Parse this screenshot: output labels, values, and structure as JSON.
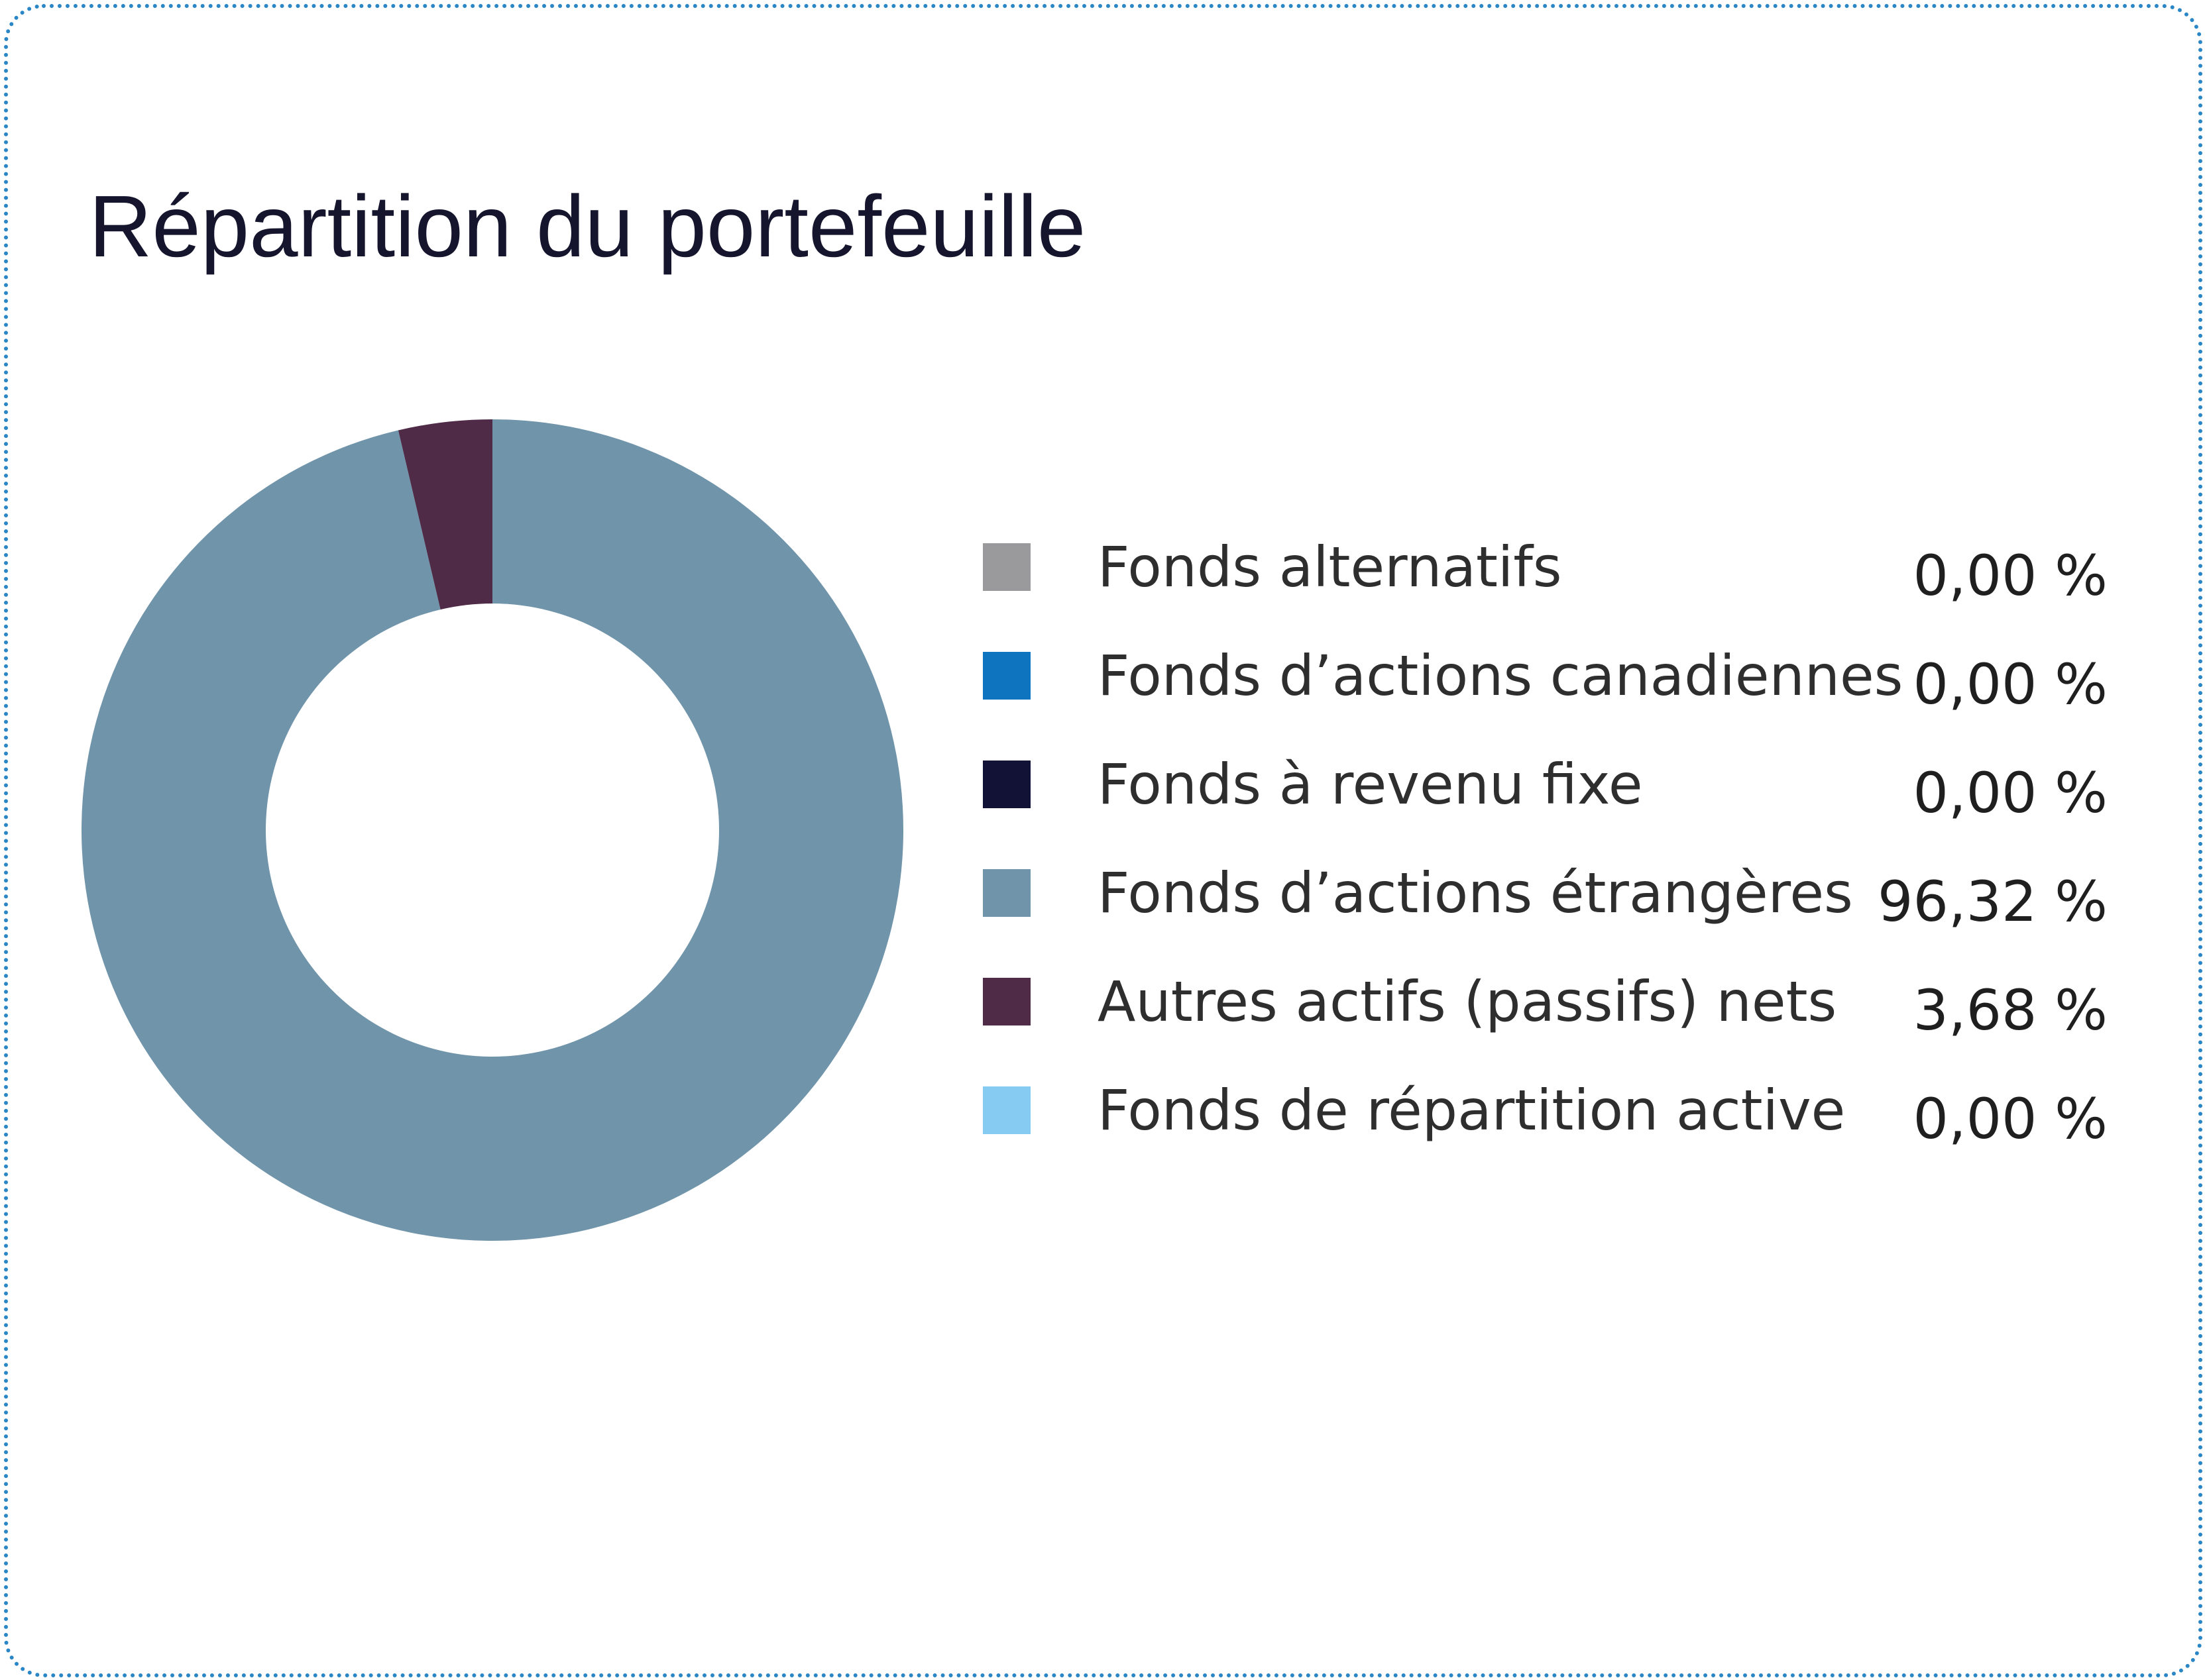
{
  "title": "Répartition du portefeuille",
  "chart_data": {
    "type": "pie",
    "variant": "donut",
    "title": "Répartition du portefeuille",
    "legend_position": "right",
    "slices": [
      {
        "label": "Fonds alternatifs",
        "value": 0.0,
        "display": "0,00 %",
        "color": "#9a9a9c"
      },
      {
        "label": "Fonds d’actions canadiennes",
        "value": 0.0,
        "display": "0,00 %",
        "color": "#0f74c0"
      },
      {
        "label": "Fonds à revenu fixe",
        "value": 0.0,
        "display": "0,00 %",
        "color": "#111236"
      },
      {
        "label": "Fonds d’actions étrangères",
        "value": 96.32,
        "display": "96,32 %",
        "color": "#7094aa"
      },
      {
        "label": "Autres actifs (passifs) nets",
        "value": 3.68,
        "display": "3,68 %",
        "color": "#4f2b47"
      },
      {
        "label": "Fonds de répartition active",
        "value": 0.0,
        "display": "0,00 %",
        "color": "#86cbf2"
      }
    ]
  }
}
